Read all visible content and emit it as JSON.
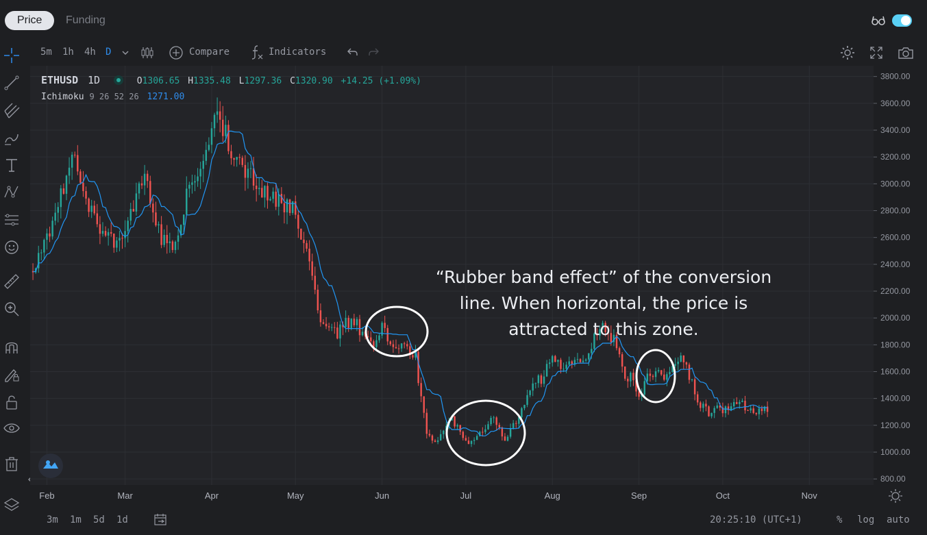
{
  "tabs": [
    {
      "label": "Price",
      "active": true
    },
    {
      "label": "Funding",
      "active": false
    }
  ],
  "toolbar": {
    "intervals": [
      "5m",
      "1h",
      "4h",
      "D"
    ],
    "active_interval": "D",
    "compare_label": "Compare",
    "indicators_label": "Indicators"
  },
  "legend": {
    "symbol": "ETHUSD",
    "interval": "1D",
    "open_label": "O",
    "open": "1306.65",
    "high_label": "H",
    "high": "1335.48",
    "low_label": "L",
    "low": "1297.36",
    "close_label": "C",
    "close": "1320.90",
    "change": "+14.25 (+1.09%)",
    "indicator_name": "Ichimoku",
    "indicator_params": "9 26 52 26",
    "indicator_value": "1271.00"
  },
  "annotation": "“Rubber band effect” of the conversion\nline. When horizontal, the price is\nattracted to this zone.",
  "bottom": {
    "ranges": [
      "3m",
      "1m",
      "5d",
      "1d"
    ],
    "time": "20:25:10 (UTC+1)",
    "percent_label": "%",
    "log_label": "log",
    "auto_label": "auto"
  },
  "colors": {
    "up": "#26a69a",
    "down": "#ef5350",
    "conversion_line": "#2196f3",
    "accent": "#2f8ceb",
    "toggle": "#5ad0f5"
  },
  "chart_data": {
    "type": "candlestick",
    "symbol": "ETHUSD",
    "interval": "1D",
    "y_ticks": [
      "3800.00",
      "3600.00",
      "3400.00",
      "3200.00",
      "3000.00",
      "2800.00",
      "2600.00",
      "2400.00",
      "2200.00",
      "2000.00",
      "1800.00",
      "1600.00",
      "1400.00",
      "1200.00",
      "1000.00",
      "800.00"
    ],
    "ylim": [
      755,
      3880
    ],
    "x_ticks": [
      "Feb",
      "Mar",
      "Apr",
      "May",
      "Jun",
      "Jul",
      "Aug",
      "Sep",
      "Oct",
      "Nov"
    ],
    "x_tick_days": [
      0,
      28,
      59,
      89,
      120,
      150,
      181,
      212,
      242,
      273
    ],
    "xlim": [
      -6,
      296
    ],
    "price_path_days": [
      -5,
      2,
      6,
      10,
      13,
      19,
      25,
      29,
      33,
      36,
      40,
      44,
      47,
      50,
      53,
      57,
      60,
      63,
      68,
      72,
      75,
      79,
      82,
      85,
      89,
      93,
      96,
      99,
      102,
      105,
      108,
      111,
      114,
      117,
      119,
      121,
      124,
      127,
      130,
      133,
      135,
      137,
      140,
      143,
      146,
      149,
      152,
      155,
      158,
      161,
      165,
      170,
      172,
      175,
      178,
      182,
      185,
      188,
      191,
      195,
      199,
      202,
      205,
      207,
      210,
      213,
      216,
      219,
      222,
      225,
      228,
      231,
      234,
      238,
      242,
      246,
      250,
      255,
      258
    ],
    "price_path": [
      2350,
      2600,
      2900,
      3200,
      3000,
      2700,
      2550,
      2700,
      2900,
      3050,
      2700,
      2500,
      2600,
      2850,
      3050,
      3200,
      3400,
      3500,
      3200,
      3100,
      3000,
      2950,
      2900,
      2850,
      2800,
      2600,
      2300,
      2000,
      1950,
      1900,
      1950,
      1980,
      1880,
      1780,
      1850,
      1970,
      1800,
      1780,
      1790,
      1700,
      1400,
      1150,
      1050,
      1150,
      1250,
      1170,
      1050,
      1100,
      1200,
      1260,
      1100,
      1250,
      1350,
      1550,
      1550,
      1700,
      1650,
      1650,
      1700,
      1750,
      1950,
      1900,
      1800,
      1600,
      1550,
      1430,
      1550,
      1600,
      1580,
      1620,
      1720,
      1580,
      1380,
      1300,
      1320,
      1340,
      1360,
      1300,
      1310
    ],
    "conversion_line": "derived from price path (9-day midpoint)"
  }
}
